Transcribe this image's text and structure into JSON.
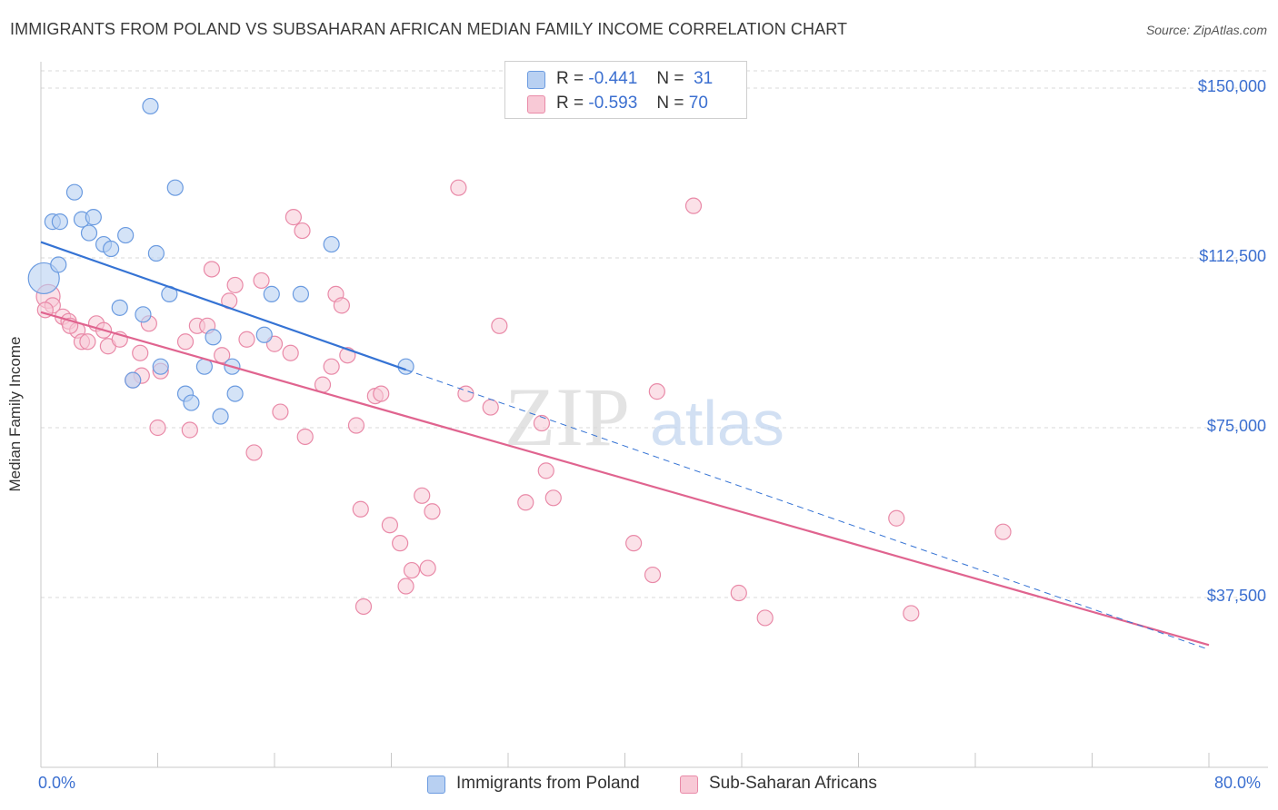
{
  "title": "IMMIGRANTS FROM POLAND VS SUBSAHARAN AFRICAN MEDIAN FAMILY INCOME CORRELATION CHART",
  "source": "Source: ZipAtlas.com",
  "watermark": {
    "zip": "ZIP",
    "atlas": "atlas"
  },
  "legend": {
    "poland": {
      "r_label": "R =",
      "r_value": "-0.441",
      "n_label": "N =",
      "n_value": "31"
    },
    "ssa": {
      "r_label": "R =",
      "r_value": "-0.593",
      "n_label": "N =",
      "n_value": "70"
    }
  },
  "colors": {
    "poland_fill": "#b8d0f2",
    "poland_stroke": "#6b9be0",
    "poland_line": "#3573d4",
    "ssa_fill": "#f8c9d6",
    "ssa_stroke": "#e98aa8",
    "ssa_line": "#e0648f",
    "tick_text": "#3b6fd0",
    "grid": "#d8d8d8"
  },
  "chart_data": {
    "type": "scatter",
    "title": "IMMIGRANTS FROM POLAND VS SUBSAHARAN AFRICAN MEDIAN FAMILY INCOME CORRELATION CHART",
    "xlabel": "",
    "ylabel": "Median Family Income",
    "xlim": [
      0,
      80
    ],
    "ylim": [
      0,
      155000
    ],
    "x_tick_labels": [
      "0.0%",
      "80.0%"
    ],
    "y_ticks": [
      37500,
      75000,
      112500,
      150000
    ],
    "y_tick_labels": [
      "$37,500",
      "$75,000",
      "$112,500",
      "$150,000"
    ],
    "grid": true,
    "legend_position": "top-center",
    "series": [
      {
        "name": "Immigrants from Poland",
        "trend": {
          "x0": 0,
          "y0": 116000,
          "x1": 25,
          "y1": 87800,
          "dashed_to_x": 80,
          "dashed_to_y": 26000
        },
        "points": [
          [
            0.2,
            108000
          ],
          [
            0.8,
            120500
          ],
          [
            1.3,
            120500
          ],
          [
            2.3,
            127000
          ],
          [
            2.8,
            121000
          ],
          [
            3.3,
            118000
          ],
          [
            3.6,
            121500
          ],
          [
            4.3,
            115500
          ],
          [
            4.8,
            114500
          ],
          [
            5.8,
            117500
          ],
          [
            7.5,
            146000
          ],
          [
            7.9,
            113500
          ],
          [
            9.2,
            128000
          ],
          [
            1.2,
            111000
          ],
          [
            5.4,
            101500
          ],
          [
            7.0,
            100000
          ],
          [
            8.8,
            104500
          ],
          [
            11.8,
            95000
          ],
          [
            13.1,
            88500
          ],
          [
            15.3,
            95500
          ],
          [
            15.8,
            104500
          ],
          [
            17.8,
            104500
          ],
          [
            19.9,
            115500
          ],
          [
            6.3,
            85500
          ],
          [
            8.2,
            88500
          ],
          [
            9.9,
            82500
          ],
          [
            10.3,
            80500
          ],
          [
            13.3,
            82500
          ],
          [
            12.3,
            77500
          ],
          [
            11.2,
            88500
          ],
          [
            25.0,
            88500
          ]
        ]
      },
      {
        "name": "Sub-Saharan Africans",
        "trend": {
          "x0": 0,
          "y0": 100500,
          "x1": 80,
          "y1": 27000
        },
        "points": [
          [
            0.5,
            104000
          ],
          [
            0.8,
            102000
          ],
          [
            1.5,
            99500
          ],
          [
            1.9,
            98500
          ],
          [
            2.5,
            96500
          ],
          [
            2.8,
            94000
          ],
          [
            3.2,
            94000
          ],
          [
            3.8,
            98000
          ],
          [
            4.3,
            96500
          ],
          [
            4.6,
            93000
          ],
          [
            5.4,
            94500
          ],
          [
            6.8,
            91500
          ],
          [
            7.4,
            98000
          ],
          [
            6.9,
            86500
          ],
          [
            8.2,
            87500
          ],
          [
            9.9,
            94000
          ],
          [
            10.7,
            97500
          ],
          [
            11.4,
            97500
          ],
          [
            12.4,
            91000
          ],
          [
            11.7,
            110000
          ],
          [
            12.9,
            103000
          ],
          [
            13.3,
            106500
          ],
          [
            14.1,
            94500
          ],
          [
            15.1,
            107500
          ],
          [
            16.0,
            93500
          ],
          [
            17.1,
            91500
          ],
          [
            17.3,
            121500
          ],
          [
            17.9,
            118500
          ],
          [
            19.3,
            84500
          ],
          [
            19.9,
            88500
          ],
          [
            20.2,
            104500
          ],
          [
            20.6,
            102000
          ],
          [
            21.0,
            91000
          ],
          [
            22.9,
            82000
          ],
          [
            23.3,
            82500
          ],
          [
            28.6,
            128000
          ],
          [
            29.1,
            82500
          ],
          [
            30.8,
            79500
          ],
          [
            31.4,
            97500
          ],
          [
            34.3,
            76000
          ],
          [
            34.6,
            65500
          ],
          [
            35.1,
            59500
          ],
          [
            44.7,
            124000
          ],
          [
            42.2,
            83000
          ],
          [
            8.0,
            75000
          ],
          [
            10.2,
            74500
          ],
          [
            14.6,
            69500
          ],
          [
            16.4,
            78500
          ],
          [
            18.1,
            73000
          ],
          [
            21.6,
            75500
          ],
          [
            21.9,
            57000
          ],
          [
            23.9,
            53500
          ],
          [
            24.6,
            49500
          ],
          [
            26.1,
            60000
          ],
          [
            26.8,
            56500
          ],
          [
            33.2,
            58500
          ],
          [
            25.4,
            43500
          ],
          [
            25.0,
            40000
          ],
          [
            22.1,
            35500
          ],
          [
            40.6,
            49500
          ],
          [
            41.9,
            42500
          ],
          [
            47.8,
            38500
          ],
          [
            49.6,
            33000
          ],
          [
            58.6,
            55000
          ],
          [
            59.6,
            34000
          ],
          [
            65.9,
            52000
          ],
          [
            0.3,
            101000
          ],
          [
            6.3,
            85500
          ],
          [
            2.0,
            97500
          ],
          [
            26.5,
            44000
          ]
        ]
      }
    ]
  },
  "bottom_legend": {
    "poland": "Immigrants from Poland",
    "ssa": "Sub-Saharan Africans"
  },
  "axis": {
    "x_min_label": "0.0%",
    "x_max_label": "80.0%"
  }
}
